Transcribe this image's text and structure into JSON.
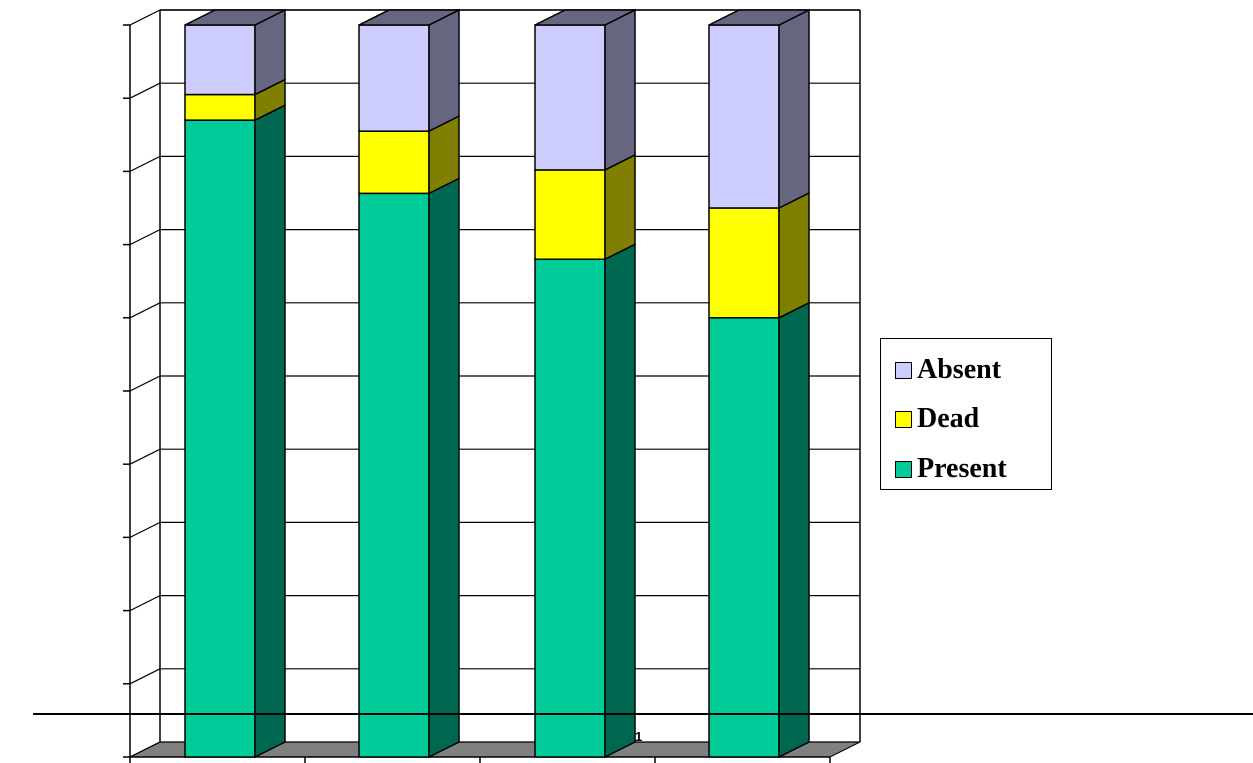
{
  "chart_data": {
    "type": "bar",
    "stacked": true,
    "three_d": true,
    "categories": [
      "",
      "",
      "",
      ""
    ],
    "series": [
      {
        "name": "Present",
        "values": [
          87,
          77,
          68,
          60
        ],
        "color": "#00cc99",
        "side_color": "#006850"
      },
      {
        "name": "Dead",
        "values": [
          3.5,
          8.5,
          12.2,
          15
        ],
        "color": "#ffff00",
        "side_color": "#808000"
      },
      {
        "name": "Absent",
        "values": [
          9.5,
          14.5,
          19.8,
          25
        ],
        "color": "#ccccff",
        "side_color": "#666680"
      }
    ],
    "ylim": [
      0,
      100
    ],
    "grid": true,
    "legend_position": "right",
    "title": "",
    "xlabel": "",
    "ylabel": ""
  },
  "page": {
    "page_number": "1"
  }
}
